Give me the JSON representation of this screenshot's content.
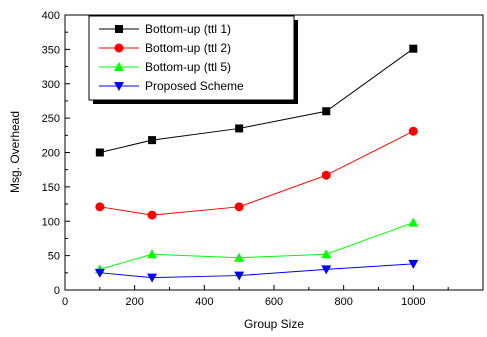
{
  "chart_data": {
    "type": "line",
    "title": "",
    "xlabel": "Group Size",
    "ylabel": "Msg. Overhead",
    "xlim": [
      0,
      1200
    ],
    "ylim": [
      0,
      400
    ],
    "xticks": [
      0,
      200,
      400,
      600,
      800,
      1000
    ],
    "yticks": [
      0,
      50,
      100,
      150,
      200,
      250,
      300,
      350,
      400
    ],
    "grid": false,
    "legend_position": "top-left",
    "x": [
      100,
      250,
      500,
      750,
      1000
    ],
    "series": [
      {
        "name": "Bottom-up (ttl 1)",
        "color": "#000000",
        "marker": "square",
        "values": [
          200,
          218,
          235,
          260,
          351
        ]
      },
      {
        "name": "Bottom-up (ttl 2)",
        "color": "#ff0000",
        "marker": "circle",
        "values": [
          121,
          109,
          121,
          167,
          231
        ]
      },
      {
        "name": "Bottom-up (ttl 5)",
        "color": "#00ff00",
        "marker": "triangle-up",
        "values": [
          30,
          52,
          47,
          52,
          98
        ]
      },
      {
        "name": "Proposed Scheme",
        "color": "#0000ff",
        "marker": "triangle-down",
        "values": [
          25,
          18,
          21,
          30,
          38
        ]
      }
    ]
  }
}
